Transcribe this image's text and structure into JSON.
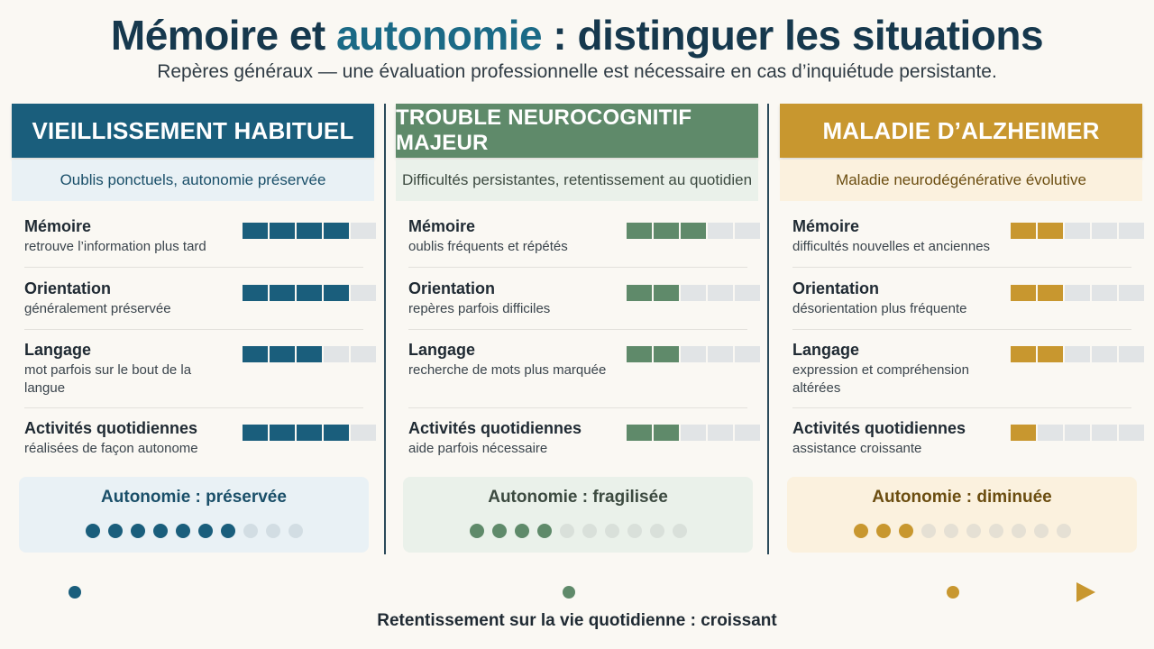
{
  "title": {
    "part1": "Mémoire et ",
    "accent": "autonomie",
    "part2": " : distinguer les situations"
  },
  "subtitle": "Repères généraux — une évaluation professionnelle est nécessaire en cas d’inquiétude persistante.",
  "colors": {
    "col1": "#1a5e7c",
    "col1_light": "#e9f1f5",
    "col1_dot_off": "#d2dde3",
    "col2": "#5f8a6a",
    "col2_light": "#eaf1ea",
    "col2_dot_off": "#d9e0da",
    "col3": "#c8972f",
    "col3_light": "#fbf1de",
    "col3_dot_off": "#e5e0d4"
  },
  "columns": [
    {
      "header": "VIEILLISSEMENT HABITUEL",
      "tagline": "Oublis ponctuels, autonomie préservée",
      "criteria": [
        {
          "name": "Mémoire",
          "desc": "retrouve l’information plus tard",
          "level": 4
        },
        {
          "name": "Orientation",
          "desc": "généralement préservée",
          "level": 4
        },
        {
          "name": "Langage",
          "desc": "mot parfois sur le bout de la langue",
          "level": 3
        },
        {
          "name": "Activités quotidiennes",
          "desc": "réalisées de façon autonome",
          "level": 4
        }
      ],
      "autonomy_label": "Autonomie : préservée",
      "autonomy_level": 7
    },
    {
      "header": "TROUBLE NEUROCOGNITIF MAJEUR",
      "tagline": "Difficultés persistantes, retentissement au quotidien",
      "criteria": [
        {
          "name": "Mémoire",
          "desc": "oublis fréquents et répétés",
          "level": 3
        },
        {
          "name": "Orientation",
          "desc": "repères parfois difficiles",
          "level": 2
        },
        {
          "name": "Langage",
          "desc": "recherche de mots plus marquée",
          "level": 2
        },
        {
          "name": "Activités quotidiennes",
          "desc": "aide parfois nécessaire",
          "level": 2
        }
      ],
      "autonomy_label": "Autonomie : fragilisée",
      "autonomy_level": 4
    },
    {
      "header": "MALADIE D’ALZHEIMER",
      "tagline": "Maladie neurodégénérative évolutive",
      "criteria": [
        {
          "name": "Mémoire",
          "desc": "difficultés nouvelles et anciennes",
          "level": 2
        },
        {
          "name": "Orientation",
          "desc": "désorientation plus fréquente",
          "level": 2
        },
        {
          "name": "Langage",
          "desc": "expression et compréhension altérées",
          "level": 2
        },
        {
          "name": "Activités quotidiennes",
          "desc": "assistance croissante",
          "level": 1
        }
      ],
      "autonomy_label": "Autonomie : diminuée",
      "autonomy_level": 3
    }
  ],
  "bar_segments": 5,
  "autonomy_dots": 10,
  "footer": "Retentissement sur la vie quotidienne : croissant"
}
